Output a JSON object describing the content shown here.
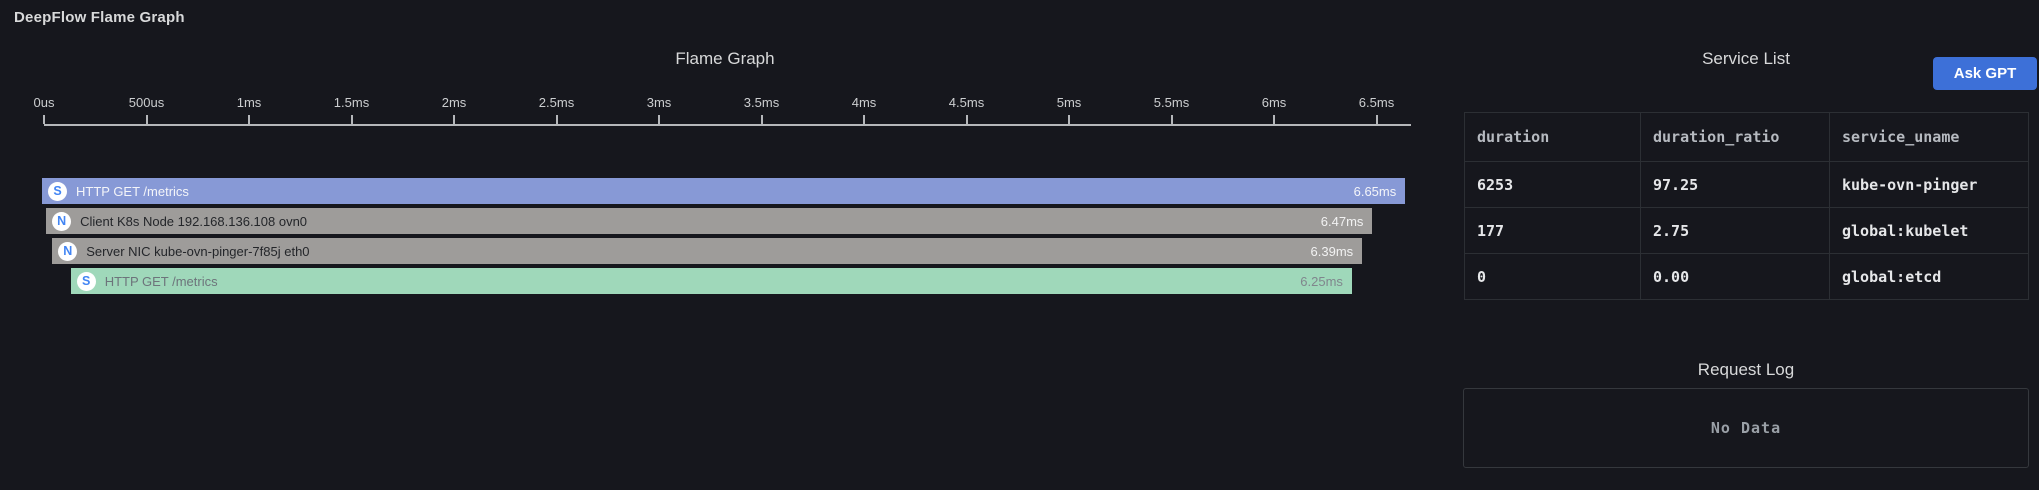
{
  "page_title": "DeepFlow Flame Graph",
  "colors": {
    "background": "#16171d",
    "axis": "#b5b7ba",
    "accent_blue": "#3d70d8",
    "icon_letter_blue": "#4285f4",
    "table_border": "#2c2f34"
  },
  "chart_data": {
    "type": "bar",
    "subtype": "flame-graph",
    "title": "Flame Graph",
    "x_unit": "ms",
    "xlim": [
      0,
      6.67
    ],
    "grid": false,
    "x_ticks": [
      {
        "label": "0us",
        "ms": 0
      },
      {
        "label": "500us",
        "ms": 0.5
      },
      {
        "label": "1ms",
        "ms": 1
      },
      {
        "label": "1.5ms",
        "ms": 1.5
      },
      {
        "label": "2ms",
        "ms": 2
      },
      {
        "label": "2.5ms",
        "ms": 2.5
      },
      {
        "label": "3ms",
        "ms": 3
      },
      {
        "label": "3.5ms",
        "ms": 3.5
      },
      {
        "label": "4ms",
        "ms": 4
      },
      {
        "label": "4.5ms",
        "ms": 4.5
      },
      {
        "label": "5ms",
        "ms": 5
      },
      {
        "label": "5.5ms",
        "ms": 5.5
      },
      {
        "label": "6ms",
        "ms": 6
      },
      {
        "label": "6.5ms",
        "ms": 6.5
      }
    ],
    "bars": [
      {
        "depth": 0,
        "icon": "S",
        "label": "HTTP GET /metrics",
        "start_ms": 0,
        "duration_ms": 6.65,
        "duration_label": "6.65ms",
        "color": "#8799d6",
        "label_color": "#f4f5f9",
        "duration_color": "#f4f5f9"
      },
      {
        "depth": 1,
        "icon": "N",
        "label": "Client K8s Node 192.168.136.108 ovn0",
        "start_ms": 0.02,
        "duration_ms": 6.47,
        "duration_label": "6.47ms",
        "color": "#9e9c9a",
        "label_color": "#24262a",
        "duration_color": "#f2f2f2"
      },
      {
        "depth": 2,
        "icon": "N",
        "label": "Server NIC kube-ovn-pinger-7f85j eth0",
        "start_ms": 0.05,
        "duration_ms": 6.39,
        "duration_label": "6.39ms",
        "color": "#9e9c9a",
        "label_color": "#24262a",
        "duration_color": "#f2f2f2"
      },
      {
        "depth": 3,
        "icon": "S",
        "label": "HTTP GET /metrics",
        "start_ms": 0.14,
        "duration_ms": 6.25,
        "duration_label": "6.25ms",
        "color": "#9fd8ba",
        "label_color": "#6d747b",
        "duration_color": "#80868d"
      }
    ]
  },
  "service_list": {
    "title": "Service List",
    "ask_gpt_label": "Ask GPT",
    "columns": [
      "duration",
      "duration_ratio",
      "service_uname"
    ],
    "rows": [
      [
        "6253",
        "97.25",
        "kube-ovn-pinger"
      ],
      [
        "177",
        "2.75",
        "global:kubelet"
      ],
      [
        "0",
        "0.00",
        "global:etcd"
      ]
    ]
  },
  "request_log": {
    "title": "Request Log",
    "empty_text": "No Data"
  }
}
